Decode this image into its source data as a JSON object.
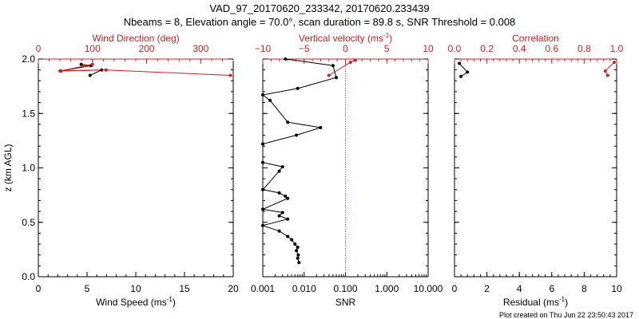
{
  "title_line1": "VAD_97_20170620_233342, 20170620.233439",
  "title_line2": "Nbeams = 8, Elevation angle = 70.0°, scan duration = 89.8 s, SNR Threshold = 0.008",
  "footer": "Plot created on Thu Jun 22 23:50:43 2017",
  "colors": {
    "primary": "#000000",
    "secondary": "#d42020"
  },
  "chart_data": [
    {
      "type": "line",
      "name": "wind-panel",
      "ylabel": "z (km AGL)",
      "ylim": [
        0,
        2.0
      ],
      "yticks": [
        0,
        0.5,
        1.0,
        1.5,
        2.0
      ],
      "ytick_labels": [
        "0.0",
        "0.5",
        "1.0",
        "1.5",
        "2.0"
      ],
      "xlabel": "Wind Speed (ms",
      "xlabel_sup": "-1",
      "xlabel_end": ")",
      "xlim": [
        0,
        20
      ],
      "xticks": [
        0,
        5,
        10,
        15,
        20
      ],
      "xtick_labels": [
        "0",
        "5",
        "10",
        "15",
        "20"
      ],
      "top_label": "Wind Direction (deg)",
      "top_lim": [
        0,
        360
      ],
      "top_ticks": [
        0,
        100,
        200,
        300
      ],
      "top_tick_labels": [
        "0",
        "100",
        "200",
        "300"
      ],
      "series": [
        {
          "name": "Wind Speed",
          "axis": "bottom",
          "color": "black",
          "x": [
            4.4,
            5.4,
            2.3,
            6.5,
            5.3
          ],
          "y": [
            1.95,
            1.94,
            1.89,
            1.9,
            1.85
          ]
        },
        {
          "name": "Wind Direction",
          "axis": "top",
          "color": "red",
          "x": [
            85,
            100,
            40,
            125,
            355
          ],
          "y": [
            1.94,
            1.95,
            1.89,
            1.9,
            1.85
          ]
        }
      ]
    },
    {
      "type": "line",
      "name": "snr-panel",
      "ylim": [
        0,
        2.0
      ],
      "xscale": "log",
      "xlabel": "SNR",
      "xlim": [
        0.001,
        10.0
      ],
      "xticks": [
        0.001,
        0.01,
        0.1,
        1.0,
        10.0
      ],
      "xtick_labels": [
        "0.001",
        "0.010",
        "0.100",
        "1.000",
        "10.000"
      ],
      "top_label": "Vertical velocity (ms",
      "top_label_sup": "-1",
      "top_label_end": ")",
      "top_lim": [
        -10,
        10
      ],
      "top_ticks": [
        -10,
        -5,
        0,
        5,
        10
      ],
      "top_tick_labels": [
        "−10",
        "−5",
        "0",
        "5",
        "10"
      ],
      "reference_line": {
        "axis": "top",
        "value": 0,
        "style": "dotted"
      },
      "series": [
        {
          "name": "SNR",
          "axis": "bottom",
          "color": "black",
          "y": [
            2.0,
            1.94,
            1.83,
            1.73,
            1.67,
            1.62,
            1.42,
            1.37,
            1.3,
            1.22,
            1.05,
            1.01,
            0.97,
            0.8,
            0.77,
            0.74,
            0.72,
            0.62,
            0.59,
            0.56,
            0.53,
            0.47,
            0.42,
            0.37,
            0.34,
            0.3,
            0.27,
            0.24,
            0.2,
            0.17,
            0.13
          ],
          "x": [
            0.0035,
            0.05,
            0.06,
            0.007,
            0.001,
            0.0015,
            0.004,
            0.025,
            0.0065,
            0.001,
            0.001,
            0.003,
            0.0025,
            0.001,
            0.0025,
            0.0035,
            0.004,
            0.001,
            0.003,
            0.0025,
            0.004,
            0.001,
            0.0025,
            0.004,
            0.005,
            0.006,
            0.007,
            0.0065,
            0.0072,
            0.007,
            0.0075
          ]
        },
        {
          "name": "Vertical velocity",
          "axis": "top",
          "color": "red",
          "x": [
            1.2,
            0.6,
            -2.0
          ],
          "y": [
            1.99,
            1.97,
            1.85
          ]
        }
      ]
    },
    {
      "type": "line",
      "name": "residual-panel",
      "ylim": [
        0,
        2.0
      ],
      "xlabel": "Residual (ms",
      "xlabel_sup": "-1",
      "xlabel_end": ")",
      "xlim": [
        0,
        10
      ],
      "xticks": [
        0,
        2,
        4,
        6,
        8,
        10
      ],
      "xtick_labels": [
        "0",
        "2",
        "4",
        "6",
        "8",
        "10"
      ],
      "top_label": "Correlation",
      "top_lim": [
        0,
        1.0
      ],
      "top_ticks": [
        0,
        0.2,
        0.4,
        0.6,
        0.8,
        1.0
      ],
      "top_tick_labels": [
        "0.0",
        "0.2",
        "0.4",
        "0.6",
        "0.8",
        "1.0"
      ],
      "series": [
        {
          "name": "Residual",
          "axis": "bottom",
          "color": "black",
          "x": [
            0.3,
            0.8,
            0.4
          ],
          "y": [
            1.96,
            1.88,
            1.84
          ]
        },
        {
          "name": "Correlation",
          "axis": "top",
          "color": "red",
          "x": [
            0.985,
            0.93,
            0.945
          ],
          "y": [
            1.97,
            1.89,
            1.85
          ]
        }
      ]
    }
  ]
}
